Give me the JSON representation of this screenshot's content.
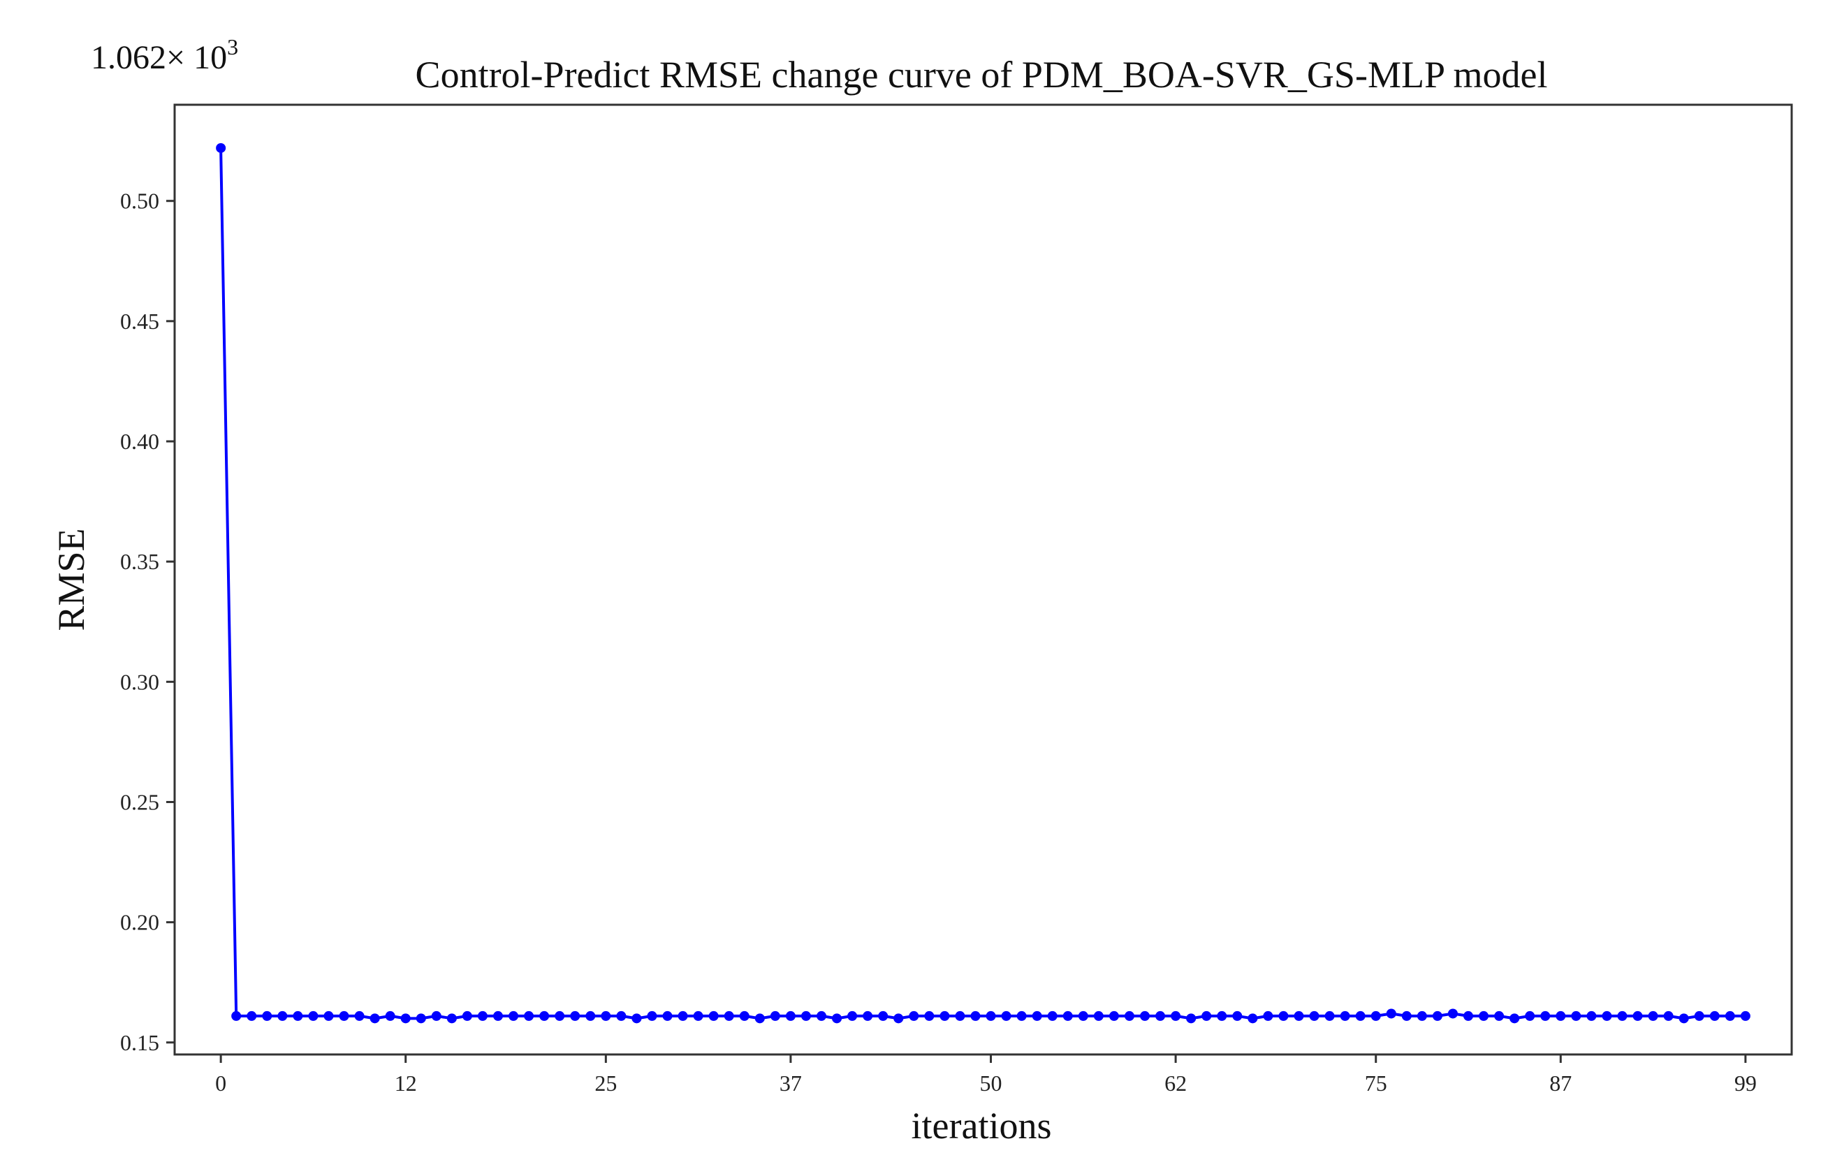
{
  "chart_data": {
    "type": "line",
    "title": "Control-Predict RMSE change curve of PDM_BOA-SVR_GS-MLP model",
    "xlabel": "iterations",
    "ylabel": "RMSE",
    "scale_multiplier": {
      "base": "1.062× 10",
      "exponent": "3"
    },
    "xlim": [
      -3,
      102
    ],
    "ylim": [
      0.145,
      0.54
    ],
    "x_ticks": [
      0,
      12,
      25,
      37,
      50,
      62,
      75,
      87,
      99
    ],
    "x_tick_labels": [
      "0",
      "12",
      "25",
      "37",
      "50",
      "62",
      "75",
      "87",
      "99"
    ],
    "y_ticks": [
      0.15,
      0.2,
      0.25,
      0.3,
      0.35,
      0.4,
      0.45,
      0.5
    ],
    "y_tick_labels": [
      "0.15",
      "0.20",
      "0.25",
      "0.30",
      "0.35",
      "0.40",
      "0.45",
      "0.50"
    ],
    "grid": false,
    "legend": "none",
    "series": [
      {
        "color": "#0000ff",
        "marker": "circle",
        "x": [
          0,
          1,
          2,
          3,
          4,
          5,
          6,
          7,
          8,
          9,
          10,
          11,
          12,
          13,
          14,
          15,
          16,
          17,
          18,
          19,
          20,
          21,
          22,
          23,
          24,
          25,
          26,
          27,
          28,
          29,
          30,
          31,
          32,
          33,
          34,
          35,
          36,
          37,
          38,
          39,
          40,
          41,
          42,
          43,
          44,
          45,
          46,
          47,
          48,
          49,
          50,
          51,
          52,
          53,
          54,
          55,
          56,
          57,
          58,
          59,
          60,
          61,
          62,
          63,
          64,
          65,
          66,
          67,
          68,
          69,
          70,
          71,
          72,
          73,
          74,
          75,
          76,
          77,
          78,
          79,
          80,
          81,
          82,
          83,
          84,
          85,
          86,
          87,
          88,
          89,
          90,
          91,
          92,
          93,
          94,
          95,
          96,
          97,
          98,
          99
        ],
        "values": [
          0.522,
          0.161,
          0.161,
          0.161,
          0.161,
          0.161,
          0.161,
          0.161,
          0.161,
          0.161,
          0.16,
          0.161,
          0.16,
          0.16,
          0.161,
          0.16,
          0.161,
          0.161,
          0.161,
          0.161,
          0.161,
          0.161,
          0.161,
          0.161,
          0.161,
          0.161,
          0.161,
          0.16,
          0.161,
          0.161,
          0.161,
          0.161,
          0.161,
          0.161,
          0.161,
          0.16,
          0.161,
          0.161,
          0.161,
          0.161,
          0.16,
          0.161,
          0.161,
          0.161,
          0.16,
          0.161,
          0.161,
          0.161,
          0.161,
          0.161,
          0.161,
          0.161,
          0.161,
          0.161,
          0.161,
          0.161,
          0.161,
          0.161,
          0.161,
          0.161,
          0.161,
          0.161,
          0.161,
          0.16,
          0.161,
          0.161,
          0.161,
          0.16,
          0.161,
          0.161,
          0.161,
          0.161,
          0.161,
          0.161,
          0.161,
          0.161,
          0.162,
          0.161,
          0.161,
          0.161,
          0.162,
          0.161,
          0.161,
          0.161,
          0.16,
          0.161,
          0.161,
          0.161,
          0.161,
          0.161,
          0.161,
          0.161,
          0.161,
          0.161,
          0.161,
          0.16,
          0.161,
          0.161,
          0.161,
          0.161
        ]
      }
    ]
  }
}
